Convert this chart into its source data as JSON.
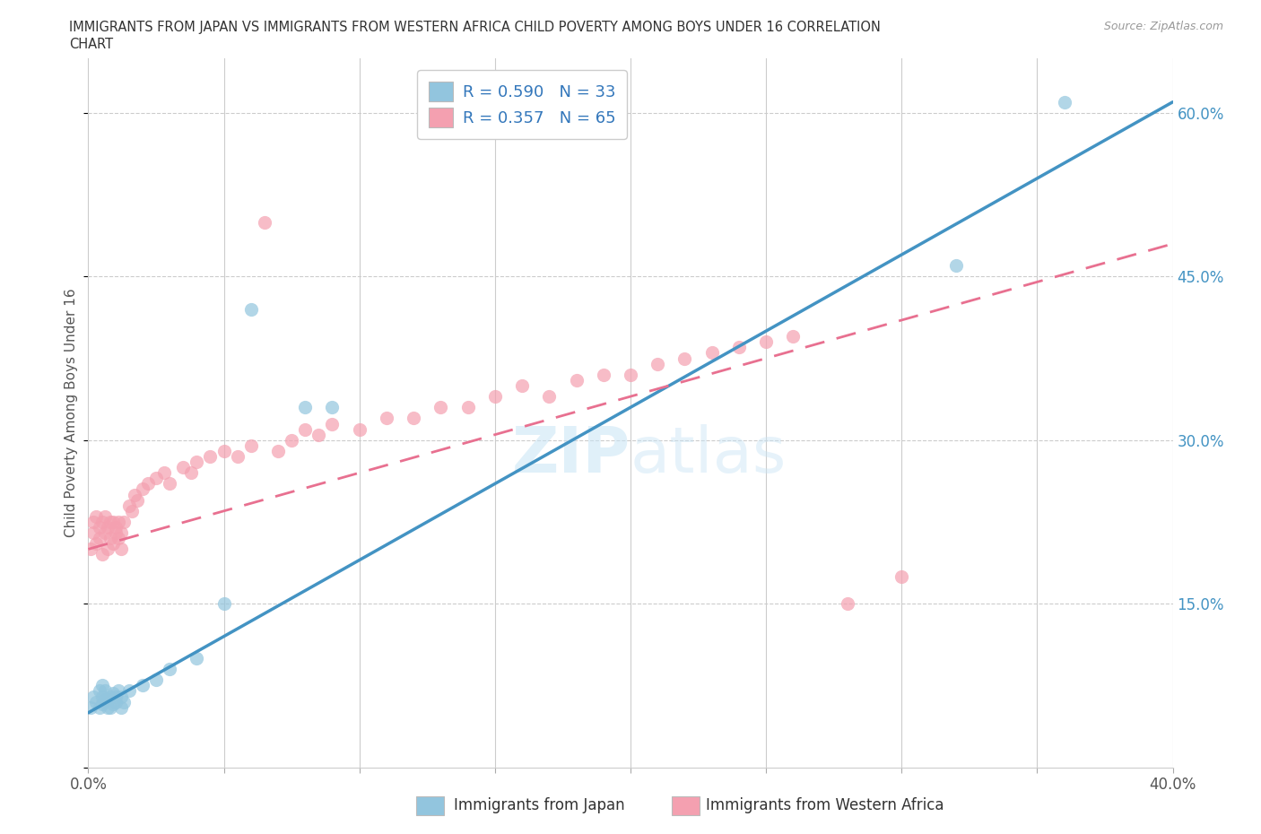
{
  "title_line1": "IMMIGRANTS FROM JAPAN VS IMMIGRANTS FROM WESTERN AFRICA CHILD POVERTY AMONG BOYS UNDER 16 CORRELATION",
  "title_line2": "CHART",
  "source_text": "Source: ZipAtlas.com",
  "ylabel_text": "Child Poverty Among Boys Under 16",
  "xlim": [
    0.0,
    0.4
  ],
  "ylim": [
    0.0,
    0.65
  ],
  "x_ticks": [
    0.0,
    0.05,
    0.1,
    0.15,
    0.2,
    0.25,
    0.3,
    0.35,
    0.4
  ],
  "y_ticks": [
    0.0,
    0.15,
    0.3,
    0.45,
    0.6
  ],
  "y_tick_labels": [
    "",
    "15.0%",
    "30.0%",
    "45.0%",
    "60.0%"
  ],
  "japan_color": "#92C5DE",
  "western_africa_color": "#F4A0B0",
  "japan_line_color": "#4393C3",
  "western_africa_line_color": "#E87090",
  "legend_japan_R": "0.590",
  "legend_japan_N": "33",
  "legend_wa_R": "0.357",
  "legend_wa_N": "65",
  "watermark": "ZIPatlas",
  "japan_x": [
    0.001,
    0.002,
    0.003,
    0.004,
    0.004,
    0.005,
    0.005,
    0.005,
    0.006,
    0.006,
    0.007,
    0.007,
    0.008,
    0.008,
    0.009,
    0.009,
    0.01,
    0.01,
    0.011,
    0.012,
    0.012,
    0.013,
    0.015,
    0.02,
    0.025,
    0.03,
    0.04,
    0.05,
    0.06,
    0.08,
    0.09,
    0.32,
    0.36
  ],
  "japan_y": [
    0.055,
    0.065,
    0.06,
    0.07,
    0.055,
    0.058,
    0.065,
    0.075,
    0.062,
    0.07,
    0.055,
    0.062,
    0.065,
    0.055,
    0.068,
    0.058,
    0.065,
    0.06,
    0.07,
    0.055,
    0.065,
    0.06,
    0.07,
    0.075,
    0.08,
    0.09,
    0.1,
    0.15,
    0.42,
    0.33,
    0.33,
    0.46,
    0.61
  ],
  "wa_x": [
    0.001,
    0.002,
    0.002,
    0.003,
    0.003,
    0.004,
    0.004,
    0.005,
    0.005,
    0.006,
    0.006,
    0.007,
    0.007,
    0.008,
    0.008,
    0.009,
    0.009,
    0.01,
    0.01,
    0.011,
    0.011,
    0.012,
    0.012,
    0.013,
    0.015,
    0.016,
    0.017,
    0.018,
    0.02,
    0.022,
    0.025,
    0.028,
    0.03,
    0.035,
    0.038,
    0.04,
    0.045,
    0.05,
    0.055,
    0.06,
    0.065,
    0.07,
    0.075,
    0.08,
    0.085,
    0.09,
    0.1,
    0.11,
    0.12,
    0.13,
    0.14,
    0.15,
    0.16,
    0.17,
    0.18,
    0.19,
    0.2,
    0.21,
    0.22,
    0.23,
    0.24,
    0.25,
    0.26,
    0.28,
    0.3
  ],
  "wa_y": [
    0.2,
    0.215,
    0.225,
    0.205,
    0.23,
    0.21,
    0.22,
    0.195,
    0.225,
    0.215,
    0.23,
    0.2,
    0.22,
    0.21,
    0.225,
    0.205,
    0.225,
    0.215,
    0.22,
    0.21,
    0.225,
    0.2,
    0.215,
    0.225,
    0.24,
    0.235,
    0.25,
    0.245,
    0.255,
    0.26,
    0.265,
    0.27,
    0.26,
    0.275,
    0.27,
    0.28,
    0.285,
    0.29,
    0.285,
    0.295,
    0.5,
    0.29,
    0.3,
    0.31,
    0.305,
    0.315,
    0.31,
    0.32,
    0.32,
    0.33,
    0.33,
    0.34,
    0.35,
    0.34,
    0.355,
    0.36,
    0.36,
    0.37,
    0.375,
    0.38,
    0.385,
    0.39,
    0.395,
    0.15,
    0.175
  ]
}
